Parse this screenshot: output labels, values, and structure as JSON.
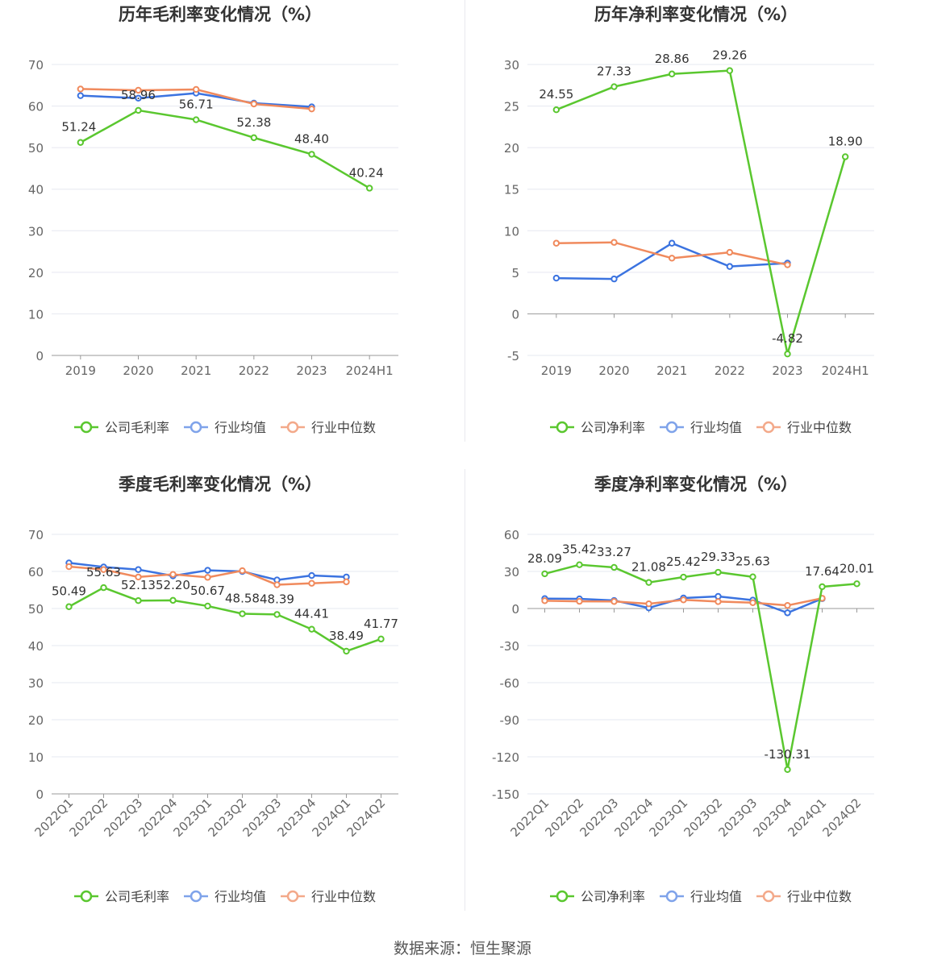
{
  "colors": {
    "company": "#5ac72f",
    "industry_avg": "#3b73e0",
    "industry_median": "#f08a5d"
  },
  "source": {
    "label": "数据来源：",
    "value": "恒生聚源"
  },
  "chart_data": [
    {
      "type": "line",
      "title": "历年毛利率变化情况（%）",
      "categories": [
        "2019",
        "2020",
        "2021",
        "2022",
        "2023",
        "2024H1"
      ],
      "ylim": [
        0,
        70
      ],
      "yticks": [
        0,
        10,
        20,
        30,
        40,
        50,
        60,
        70
      ],
      "grid": true,
      "legend_position": "bottom",
      "series": [
        {
          "name": "公司毛利率",
          "values": [
            51.24,
            58.96,
            56.71,
            52.38,
            48.4,
            40.24
          ],
          "labels": [
            "51.24",
            "58.96",
            "56.71",
            "52.38",
            "48.40",
            "40.24"
          ]
        },
        {
          "name": "行业均值",
          "values": [
            62.5,
            61.9,
            63.1,
            60.7,
            59.8,
            null
          ]
        },
        {
          "name": "行业中位数",
          "values": [
            64.1,
            63.8,
            64.0,
            60.5,
            59.3,
            null
          ]
        }
      ]
    },
    {
      "type": "line",
      "title": "历年净利率变化情况（%）",
      "categories": [
        "2019",
        "2020",
        "2021",
        "2022",
        "2023",
        "2024H1"
      ],
      "ylim": [
        -5,
        30
      ],
      "yticks": [
        -5,
        0,
        5,
        10,
        15,
        20,
        25,
        30
      ],
      "grid": true,
      "legend_position": "bottom",
      "series": [
        {
          "name": "公司净利率",
          "values": [
            24.55,
            27.33,
            28.86,
            29.26,
            -4.82,
            18.9
          ],
          "labels": [
            "24.55",
            "27.33",
            "28.86",
            "29.26",
            "-4.82",
            "18.90"
          ]
        },
        {
          "name": "行业均值",
          "values": [
            4.3,
            4.2,
            8.5,
            5.7,
            6.1,
            null
          ]
        },
        {
          "name": "行业中位数",
          "values": [
            8.5,
            8.6,
            6.7,
            7.4,
            5.9,
            null
          ]
        }
      ]
    },
    {
      "type": "line",
      "title": "季度毛利率变化情况（%）",
      "categories": [
        "2022Q1",
        "2022Q2",
        "2022Q3",
        "2022Q4",
        "2023Q1",
        "2023Q2",
        "2023Q3",
        "2023Q4",
        "2024Q1",
        "2024Q2"
      ],
      "ylim": [
        0,
        70
      ],
      "yticks": [
        0,
        10,
        20,
        30,
        40,
        50,
        60,
        70
      ],
      "grid": true,
      "legend_position": "bottom",
      "series": [
        {
          "name": "公司毛利率",
          "values": [
            50.49,
            55.63,
            52.13,
            52.2,
            50.67,
            48.58,
            48.39,
            44.41,
            38.49,
            41.77
          ],
          "labels": [
            "50.49",
            "55.63",
            "52.13",
            "52.20",
            "50.67",
            "48.58",
            "48.39",
            "44.41",
            "38.49",
            "41.77"
          ]
        },
        {
          "name": "行业均值",
          "values": [
            62.3,
            61.2,
            60.5,
            58.8,
            60.3,
            60.0,
            57.7,
            58.9,
            58.5,
            null
          ]
        },
        {
          "name": "行业中位数",
          "values": [
            61.3,
            60.5,
            58.5,
            59.2,
            58.4,
            60.2,
            56.4,
            56.8,
            57.2,
            null
          ]
        }
      ]
    },
    {
      "type": "line",
      "title": "季度净利率变化情况（%）",
      "categories": [
        "2022Q1",
        "2022Q2",
        "2022Q3",
        "2022Q4",
        "2023Q1",
        "2023Q2",
        "2023Q3",
        "2023Q4",
        "2024Q1",
        "2024Q2"
      ],
      "ylim": [
        -150,
        60
      ],
      "yticks": [
        -150,
        -120,
        -90,
        -60,
        -30,
        0,
        30,
        60
      ],
      "grid": true,
      "legend_position": "bottom",
      "series": [
        {
          "name": "公司净利率",
          "values": [
            28.09,
            35.42,
            33.27,
            21.08,
            25.42,
            29.33,
            25.63,
            -130.31,
            17.64,
            20.01
          ],
          "labels": [
            "28.09",
            "35.42",
            "33.27",
            "21.08",
            "25.42",
            "29.33",
            "25.63",
            "-130.31",
            "17.64",
            "20.01"
          ]
        },
        {
          "name": "行业均值",
          "values": [
            8.0,
            7.8,
            6.5,
            0.5,
            8.5,
            9.8,
            6.8,
            -3.5,
            8.0,
            null
          ]
        },
        {
          "name": "行业中位数",
          "values": [
            6.3,
            5.8,
            5.7,
            3.8,
            7.0,
            5.6,
            4.7,
            2.5,
            8.3,
            null
          ]
        }
      ]
    }
  ]
}
